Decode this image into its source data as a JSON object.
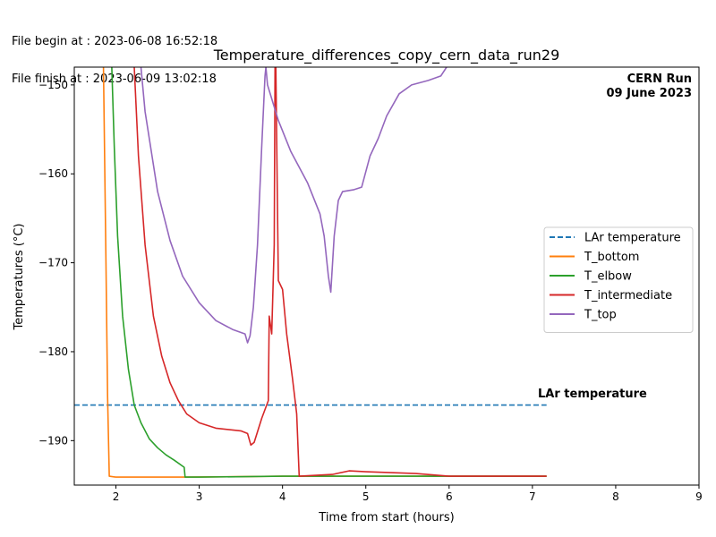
{
  "file_info": {
    "begin": "File begin at : 2023-06-08 16:52:18",
    "finish": "File finish at : 2023-06-09 13:02:18"
  },
  "chart_data": {
    "type": "line",
    "title": "Temperature_differences_copy_cern_data_run29",
    "xlabel": "Time from start (hours)",
    "ylabel": "Temperatures (°C)",
    "xlim": [
      1.5,
      9
    ],
    "ylim": [
      -195,
      -148
    ],
    "xticks": [
      2,
      3,
      4,
      5,
      6,
      7,
      8,
      9
    ],
    "yticks": [
      -190,
      -180,
      -170,
      -160,
      -150
    ],
    "grid": false,
    "legend_position": "center-right",
    "annotations": {
      "run_line1": "CERN Run",
      "run_line2": "09 June 2023",
      "lar_label": "LAr temperature"
    },
    "series": [
      {
        "name": "LAr temperature",
        "color": "#1f77b4",
        "dashed": true,
        "points": [
          [
            1.5,
            -186
          ],
          [
            7.17,
            -186
          ]
        ]
      },
      {
        "name": "T_bottom",
        "color": "#ff7f0e",
        "points": [
          [
            1.85,
            -148
          ],
          [
            1.88,
            -170
          ],
          [
            1.9,
            -185
          ],
          [
            1.92,
            -194.0
          ],
          [
            2.0,
            -194.1
          ],
          [
            2.8,
            -194.1
          ],
          [
            4.0,
            -194.0
          ],
          [
            7.17,
            -194.0
          ]
        ]
      },
      {
        "name": "T_elbow",
        "color": "#2ca02c",
        "points": [
          [
            1.95,
            -148
          ],
          [
            1.98,
            -157
          ],
          [
            2.02,
            -167
          ],
          [
            2.08,
            -176
          ],
          [
            2.15,
            -182
          ],
          [
            2.22,
            -186
          ],
          [
            2.3,
            -188
          ],
          [
            2.4,
            -189.8
          ],
          [
            2.5,
            -190.8
          ],
          [
            2.6,
            -191.6
          ],
          [
            2.7,
            -192.2
          ],
          [
            2.82,
            -193
          ],
          [
            2.83,
            -194.1
          ],
          [
            3.0,
            -194.1
          ],
          [
            4.0,
            -194.0
          ],
          [
            7.17,
            -194.0
          ]
        ]
      },
      {
        "name": "T_intermediate",
        "color": "#d62728",
        "points": [
          [
            2.22,
            -148
          ],
          [
            2.27,
            -158
          ],
          [
            2.35,
            -168
          ],
          [
            2.45,
            -176
          ],
          [
            2.55,
            -180.5
          ],
          [
            2.65,
            -183.5
          ],
          [
            2.75,
            -185.5
          ],
          [
            2.85,
            -187
          ],
          [
            3.0,
            -188
          ],
          [
            3.2,
            -188.6
          ],
          [
            3.5,
            -188.9
          ],
          [
            3.58,
            -189.2
          ],
          [
            3.62,
            -190.5
          ],
          [
            3.66,
            -190.2
          ],
          [
            3.75,
            -187.5
          ],
          [
            3.83,
            -185.5
          ],
          [
            3.84,
            -176
          ],
          [
            3.87,
            -178
          ],
          [
            3.9,
            -168
          ],
          [
            3.91,
            -148
          ],
          [
            3.92,
            -148
          ],
          [
            3.95,
            -172
          ],
          [
            4.0,
            -173
          ],
          [
            4.05,
            -178
          ],
          [
            4.12,
            -183
          ],
          [
            4.17,
            -187
          ],
          [
            4.2,
            -194.0
          ],
          [
            4.6,
            -193.8
          ],
          [
            4.8,
            -193.4
          ],
          [
            5.0,
            -193.5
          ],
          [
            5.3,
            -193.6
          ],
          [
            5.6,
            -193.7
          ],
          [
            6.0,
            -194.0
          ],
          [
            7.17,
            -194.0
          ]
        ]
      },
      {
        "name": "T_top",
        "color": "#9467bd",
        "points": [
          [
            2.3,
            -148
          ],
          [
            2.35,
            -153
          ],
          [
            2.5,
            -162
          ],
          [
            2.65,
            -167.5
          ],
          [
            2.8,
            -171.5
          ],
          [
            3.0,
            -174.5
          ],
          [
            3.2,
            -176.5
          ],
          [
            3.4,
            -177.5
          ],
          [
            3.55,
            -178
          ],
          [
            3.58,
            -179
          ],
          [
            3.61,
            -178.2
          ],
          [
            3.65,
            -175
          ],
          [
            3.7,
            -168
          ],
          [
            3.75,
            -157
          ],
          [
            3.79,
            -149
          ],
          [
            3.8,
            -148
          ],
          [
            3.82,
            -150
          ],
          [
            3.95,
            -154
          ],
          [
            4.1,
            -157.5
          ],
          [
            4.3,
            -161
          ],
          [
            4.45,
            -164.5
          ],
          [
            4.5,
            -167
          ],
          [
            4.55,
            -171.5
          ],
          [
            4.58,
            -173.3
          ],
          [
            4.62,
            -167
          ],
          [
            4.67,
            -163
          ],
          [
            4.72,
            -162
          ],
          [
            4.85,
            -161.8
          ],
          [
            4.95,
            -161.5
          ],
          [
            5.05,
            -158
          ],
          [
            5.15,
            -156
          ],
          [
            5.25,
            -153.5
          ],
          [
            5.4,
            -151
          ],
          [
            5.55,
            -150
          ],
          [
            5.75,
            -149.5
          ],
          [
            5.9,
            -149
          ],
          [
            5.97,
            -148
          ]
        ]
      }
    ]
  }
}
